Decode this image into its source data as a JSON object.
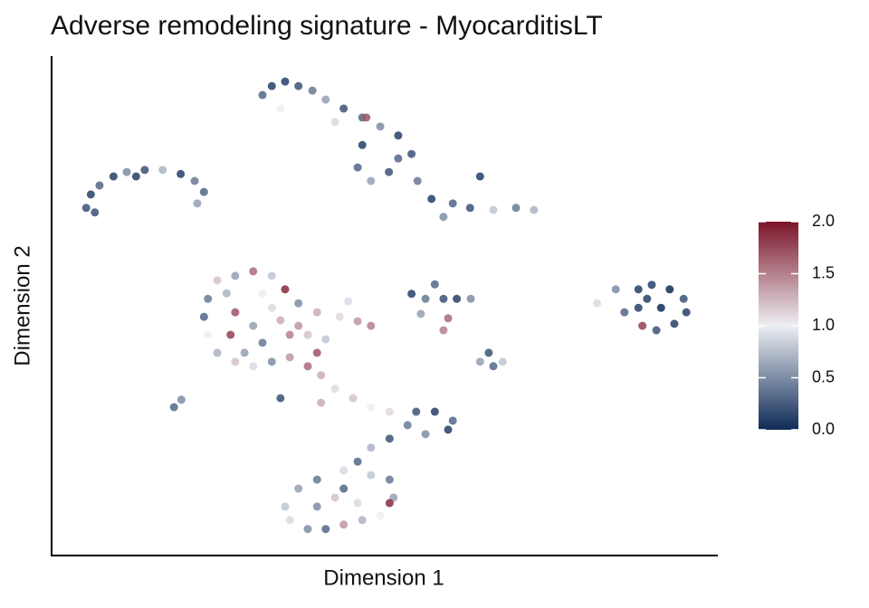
{
  "chart_data": {
    "type": "scatter",
    "title": "Adverse remodeling signature - MyocarditisLT",
    "xlabel": "Dimension 1",
    "ylabel": "Dimension 2",
    "xlim": [
      0,
      100
    ],
    "ylim": [
      0,
      100
    ],
    "colormap": [
      "#0f2b57",
      "#eceef2",
      "#7b1428"
    ],
    "colorlim": [
      0,
      2
    ],
    "colorticks": [
      {
        "value": 0,
        "label": "0.0"
      },
      0.5,
      {
        "value": 1,
        "label": "1.0"
      },
      1.5,
      {
        "value": 2,
        "label": "2.0"
      }
    ],
    "series": [
      {
        "x": [
          5.2,
          5.9,
          7.2,
          9.3,
          11.3,
          14.0,
          16.7,
          19.4,
          21.5,
          22.9,
          21.9,
          6.5,
          12.7,
          31.7,
          33.1,
          35.1,
          37.1,
          39.2,
          41.2,
          43.9,
          46.7,
          49.4,
          52.1,
          54.1,
          46.7,
          46.0,
          48.0,
          50.7,
          55.0,
          57.1,
          58.9,
          60.3,
          62.9,
          66.4,
          69.8,
          72.5,
          64.4,
          52.1,
          42.6,
          34.4,
          47.3,
          23.5,
          24.9,
          27.6,
          30.3,
          33.1,
          35.1,
          37.1,
          39.9,
          43.3,
          46.0,
          48.0,
          22.9,
          23.5,
          24.9,
          27.6,
          30.3,
          33.1,
          35.8,
          38.5,
          40.5,
          42.6,
          45.3,
          48.0,
          50.8,
          27.6,
          30.3,
          33.1,
          35.8,
          38.5,
          41.2,
          26.9,
          31.7,
          34.4,
          26.3,
          31.7,
          37.1,
          29.0,
          39.9,
          44.6,
          58.9,
          34.4,
          40.5,
          54.1,
          56.2,
          58.9,
          60.9,
          63.0,
          57.6,
          55.5,
          59.6,
          82.0,
          84.8,
          86.1,
          88.2,
          90.2,
          92.9,
          95.0,
          95.4,
          93.6,
          90.9,
          88.8,
          88.2,
          91.6,
          89.5,
          64.4,
          66.4,
          67.8,
          65.7,
          54.8,
          57.6,
          60.3,
          59.6,
          56.2,
          53.5,
          50.8,
          48.0,
          46.0,
          43.9,
          39.9,
          37.1,
          35.1,
          35.8,
          38.5,
          41.2,
          43.9,
          46.7,
          49.4,
          51.4,
          50.8,
          48.0,
          42.6,
          39.9,
          46.0,
          43.9,
          50.8,
          18.4,
          19.5
        ],
        "y": [
          69.6,
          72.3,
          74.1,
          75.9,
          76.8,
          77.2,
          77.2,
          76.4,
          75.0,
          72.8,
          70.5,
          68.7,
          75.9,
          92.2,
          94.0,
          94.9,
          94.0,
          93.1,
          91.3,
          89.5,
          87.7,
          85.9,
          84.1,
          80.4,
          82.2,
          77.7,
          75.0,
          76.8,
          75.0,
          71.4,
          67.8,
          70.5,
          69.6,
          69.2,
          69.6,
          69.2,
          75.9,
          79.5,
          86.8,
          89.5,
          87.7,
          51.4,
          55.1,
          56.0,
          56.9,
          56.0,
          53.3,
          50.5,
          48.7,
          47.8,
          46.9,
          46.0,
          47.8,
          44.2,
          40.6,
          38.8,
          37.9,
          38.8,
          39.7,
          37.9,
          36.1,
          33.4,
          31.5,
          29.7,
          28.8,
          48.7,
          46.0,
          49.6,
          44.2,
          44.2,
          43.3,
          44.2,
          42.6,
          47.1,
          52.5,
          52.5,
          46.0,
          40.6,
          40.6,
          50.9,
          45.1,
          31.5,
          30.6,
          52.4,
          51.4,
          51.4,
          51.4,
          51.4,
          54.3,
          48.4,
          47.5,
          50.5,
          53.3,
          48.7,
          53.3,
          54.2,
          53.3,
          51.4,
          48.7,
          46.4,
          45.1,
          46.0,
          49.6,
          49.6,
          51.4,
          38.8,
          37.9,
          38.8,
          40.6,
          28.8,
          28.8,
          27.0,
          25.2,
          24.3,
          26.1,
          23.4,
          21.6,
          18.8,
          17.0,
          15.2,
          13.4,
          9.8,
          7.1,
          5.3,
          5.3,
          6.2,
          7.1,
          8.0,
          11.6,
          15.2,
          16.1,
          11.6,
          9.8,
          10.5,
          13.4,
          10.5,
          29.7,
          31.2
        ],
        "values": [
          0.2,
          0.1,
          0.3,
          0.1,
          0.5,
          0.2,
          0.7,
          0.1,
          0.4,
          0.3,
          0.6,
          0.2,
          0.1,
          0.3,
          0.1,
          0.1,
          0.2,
          0.4,
          0.6,
          0.2,
          0.3,
          0.5,
          0.1,
          0.2,
          0.1,
          0.3,
          0.6,
          0.2,
          0.4,
          0.1,
          0.5,
          0.3,
          0.2,
          0.8,
          0.4,
          0.7,
          0.1,
          0.3,
          0.9,
          1.0,
          1.7,
          0.4,
          1.2,
          0.6,
          1.6,
          0.8,
          1.9,
          0.5,
          1.3,
          1.1,
          1.4,
          1.5,
          0.3,
          1.0,
          0.7,
          1.2,
          0.9,
          0.5,
          1.4,
          1.6,
          1.3,
          1.1,
          1.2,
          1.0,
          1.1,
          1.7,
          0.6,
          0.9,
          1.5,
          1.2,
          0.8,
          1.8,
          0.4,
          1.3,
          0.7,
          1.0,
          1.4,
          0.6,
          1.7,
          0.9,
          1.5,
          0.2,
          1.3,
          0.1,
          0.4,
          0.2,
          0.1,
          0.5,
          0.3,
          0.6,
          1.6,
          0.9,
          0.5,
          0.3,
          0.1,
          0.1,
          0.0,
          0.2,
          0.1,
          0.1,
          0.2,
          1.8,
          0.1,
          0.0,
          0.1,
          0.6,
          0.3,
          0.8,
          0.2,
          0.2,
          0.1,
          0.3,
          0.1,
          0.5,
          0.4,
          0.2,
          0.7,
          0.3,
          0.9,
          0.4,
          0.6,
          0.8,
          1.1,
          0.5,
          0.3,
          1.4,
          0.7,
          1.0,
          0.6,
          0.4,
          0.8,
          1.2,
          0.5,
          0.9,
          0.3,
          1.9,
          0.3,
          0.5
        ]
      }
    ]
  }
}
